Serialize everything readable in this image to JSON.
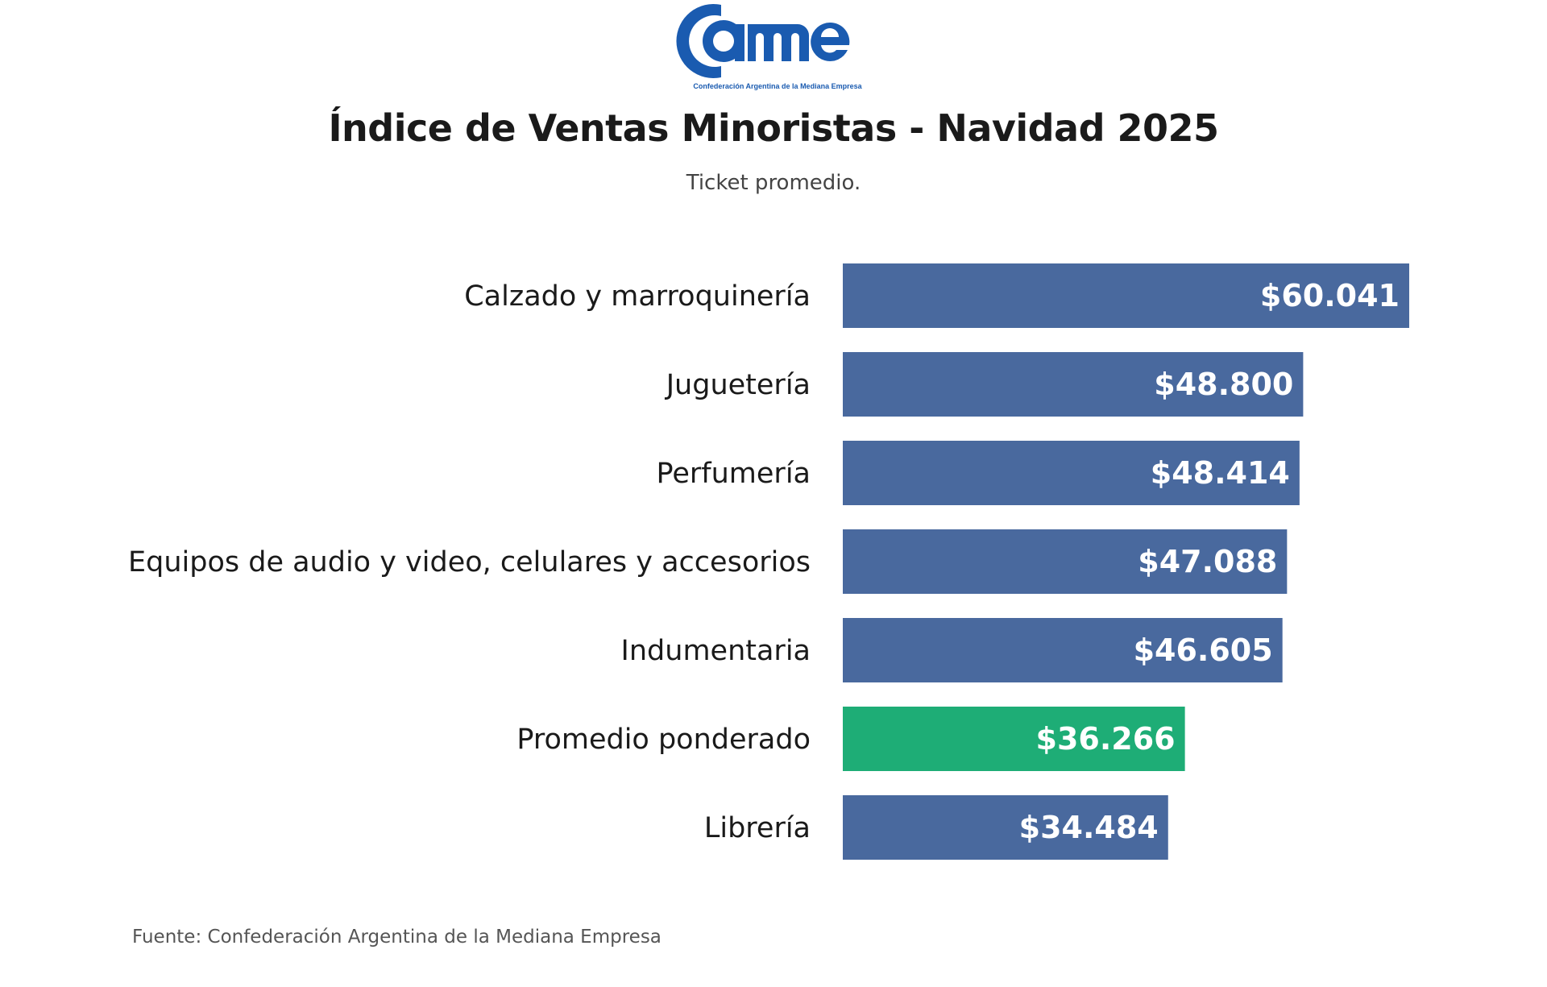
{
  "logo": {
    "text": "came",
    "tagline": "Confederación Argentina de la Mediana Empresa",
    "color": "#1a5bb0"
  },
  "chart_data": {
    "type": "bar",
    "orientation": "horizontal",
    "title": "Índice de Ventas Minoristas - Navidad 2025",
    "subtitle": "Ticket promedio.",
    "categories": [
      "Calzado y marroquinería",
      "Juguetería",
      "Perfumería",
      "Equipos de audio y video, celulares y accesorios",
      "Indumentaria",
      "Promedio ponderado",
      "Librería"
    ],
    "values": [
      60041,
      48800,
      48414,
      47088,
      46605,
      36266,
      34484
    ],
    "data_labels": [
      "$60.041",
      "$48.800",
      "$48.414",
      "$47.088",
      "$46.605",
      "$36.266",
      "$34.484"
    ],
    "colors": [
      "#49699e",
      "#49699e",
      "#49699e",
      "#49699e",
      "#49699e",
      "#1ead76",
      "#49699e"
    ],
    "grid": false,
    "axes_visible": false
  },
  "source": "Fuente: Confederación Argentina de la Mediana Empresa"
}
